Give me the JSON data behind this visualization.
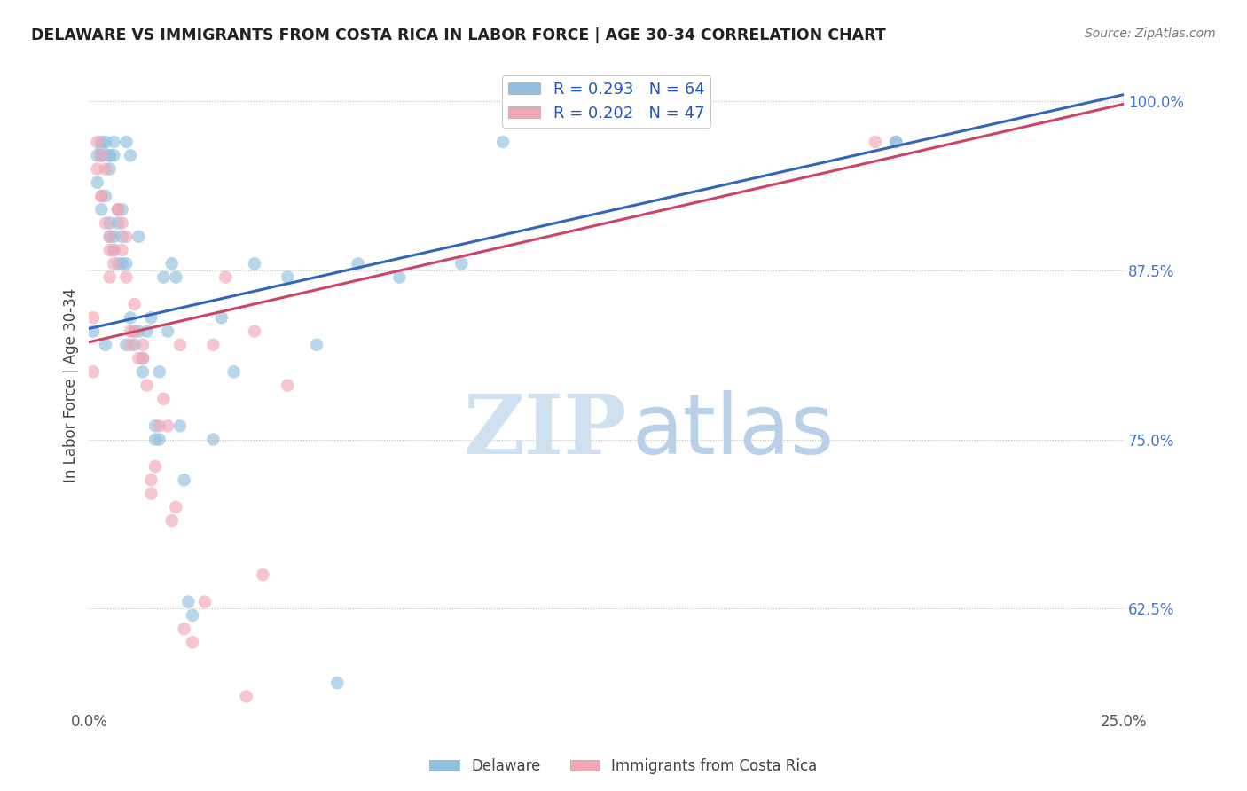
{
  "title": "DELAWARE VS IMMIGRANTS FROM COSTA RICA IN LABOR FORCE | AGE 30-34 CORRELATION CHART",
  "source": "Source: ZipAtlas.com",
  "ylabel": "In Labor Force | Age 30-34",
  "xlim": [
    0.0,
    0.25
  ],
  "ylim": [
    0.55,
    1.03
  ],
  "yticks": [
    0.625,
    0.75,
    0.875,
    1.0
  ],
  "ytick_labels": [
    "62.5%",
    "75.0%",
    "87.5%",
    "100.0%"
  ],
  "xticks": [
    0.0,
    0.05,
    0.1,
    0.15,
    0.2,
    0.25
  ],
  "xtick_labels": [
    "0.0%",
    "",
    "",
    "",
    "",
    "25.0%"
  ],
  "delaware_color": "#92c0e0",
  "costa_rica_color": "#f0a8b8",
  "trendline_delaware_color": "#3366bb",
  "trendline_costa_rica_color": "#cc4466",
  "R_delaware": 0.293,
  "N_delaware": 64,
  "R_costa_rica": 0.202,
  "N_costa_rica": 47,
  "background_color": "#ffffff",
  "trendline_delaware": [
    0.0,
    0.832,
    0.25,
    1.005
  ],
  "trendline_costa_rica": [
    0.0,
    0.822,
    0.25,
    0.998
  ],
  "delaware_x": [
    0.001,
    0.002,
    0.002,
    0.003,
    0.003,
    0.003,
    0.003,
    0.003,
    0.004,
    0.004,
    0.004,
    0.005,
    0.005,
    0.005,
    0.005,
    0.005,
    0.006,
    0.006,
    0.006,
    0.006,
    0.007,
    0.007,
    0.007,
    0.008,
    0.008,
    0.008,
    0.009,
    0.009,
    0.009,
    0.01,
    0.01,
    0.011,
    0.011,
    0.012,
    0.012,
    0.013,
    0.013,
    0.014,
    0.015,
    0.016,
    0.016,
    0.017,
    0.017,
    0.018,
    0.019,
    0.02,
    0.021,
    0.022,
    0.023,
    0.024,
    0.025,
    0.03,
    0.032,
    0.035,
    0.04,
    0.048,
    0.055,
    0.06,
    0.065,
    0.075,
    0.09,
    0.1,
    0.195,
    0.195
  ],
  "delaware_y": [
    0.83,
    0.96,
    0.94,
    0.97,
    0.965,
    0.96,
    0.96,
    0.92,
    0.97,
    0.93,
    0.82,
    0.96,
    0.96,
    0.95,
    0.91,
    0.9,
    0.96,
    0.97,
    0.9,
    0.89,
    0.92,
    0.91,
    0.88,
    0.92,
    0.9,
    0.88,
    0.97,
    0.88,
    0.82,
    0.96,
    0.84,
    0.83,
    0.82,
    0.9,
    0.83,
    0.81,
    0.8,
    0.83,
    0.84,
    0.75,
    0.76,
    0.8,
    0.75,
    0.87,
    0.83,
    0.88,
    0.87,
    0.76,
    0.72,
    0.63,
    0.62,
    0.75,
    0.84,
    0.8,
    0.88,
    0.87,
    0.82,
    0.57,
    0.88,
    0.87,
    0.88,
    0.97,
    0.97,
    0.97
  ],
  "costa_rica_x": [
    0.001,
    0.001,
    0.002,
    0.002,
    0.003,
    0.003,
    0.003,
    0.004,
    0.004,
    0.005,
    0.005,
    0.005,
    0.006,
    0.006,
    0.007,
    0.007,
    0.008,
    0.008,
    0.009,
    0.009,
    0.01,
    0.01,
    0.011,
    0.011,
    0.012,
    0.013,
    0.013,
    0.014,
    0.015,
    0.015,
    0.016,
    0.017,
    0.018,
    0.019,
    0.02,
    0.021,
    0.022,
    0.023,
    0.025,
    0.028,
    0.03,
    0.033,
    0.038,
    0.04,
    0.042,
    0.048,
    0.19
  ],
  "costa_rica_y": [
    0.84,
    0.8,
    0.97,
    0.95,
    0.96,
    0.93,
    0.93,
    0.95,
    0.91,
    0.9,
    0.89,
    0.87,
    0.89,
    0.88,
    0.92,
    0.92,
    0.91,
    0.89,
    0.9,
    0.87,
    0.83,
    0.82,
    0.85,
    0.83,
    0.81,
    0.82,
    0.81,
    0.79,
    0.72,
    0.71,
    0.73,
    0.76,
    0.78,
    0.76,
    0.69,
    0.7,
    0.82,
    0.61,
    0.6,
    0.63,
    0.82,
    0.87,
    0.56,
    0.83,
    0.65,
    0.79,
    0.97
  ]
}
